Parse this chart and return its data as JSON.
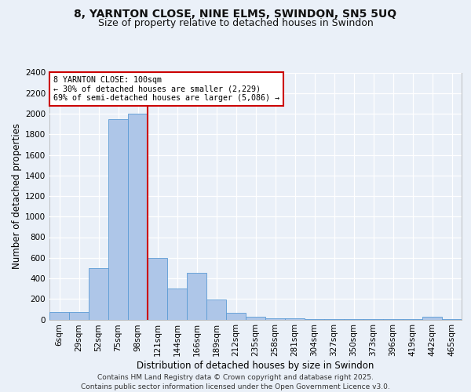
{
  "title1": "8, YARNTON CLOSE, NINE ELMS, SWINDON, SN5 5UQ",
  "title2": "Size of property relative to detached houses in Swindon",
  "xlabel": "Distribution of detached houses by size in Swindon",
  "ylabel": "Number of detached properties",
  "categories": [
    "6sqm",
    "29sqm",
    "52sqm",
    "75sqm",
    "98sqm",
    "121sqm",
    "144sqm",
    "166sqm",
    "189sqm",
    "212sqm",
    "235sqm",
    "258sqm",
    "281sqm",
    "304sqm",
    "327sqm",
    "350sqm",
    "373sqm",
    "396sqm",
    "419sqm",
    "442sqm",
    "465sqm"
  ],
  "values": [
    70,
    75,
    500,
    1950,
    2000,
    600,
    300,
    450,
    195,
    65,
    30,
    15,
    10,
    7,
    5,
    3,
    2,
    1,
    1,
    30,
    1
  ],
  "bar_color": "#aec6e8",
  "bar_edge_color": "#5b9bd5",
  "vline_index": 4,
  "vline_color": "#cc0000",
  "annotation_text": "8 YARNTON CLOSE: 100sqm\n← 30% of detached houses are smaller (2,229)\n69% of semi-detached houses are larger (5,086) →",
  "annotation_box_color": "#ffffff",
  "annotation_box_edge": "#cc0000",
  "ylim": [
    0,
    2400
  ],
  "yticks": [
    0,
    200,
    400,
    600,
    800,
    1000,
    1200,
    1400,
    1600,
    1800,
    2000,
    2200,
    2400
  ],
  "footer": "Contains HM Land Registry data © Crown copyright and database right 2025.\nContains public sector information licensed under the Open Government Licence v3.0.",
  "bg_color": "#eaf0f8",
  "plot_bg_color": "#eaf0f8",
  "grid_color": "#ffffff",
  "title_fontsize": 10,
  "subtitle_fontsize": 9,
  "axis_label_fontsize": 8.5,
  "tick_fontsize": 7.5,
  "footer_fontsize": 6.5
}
